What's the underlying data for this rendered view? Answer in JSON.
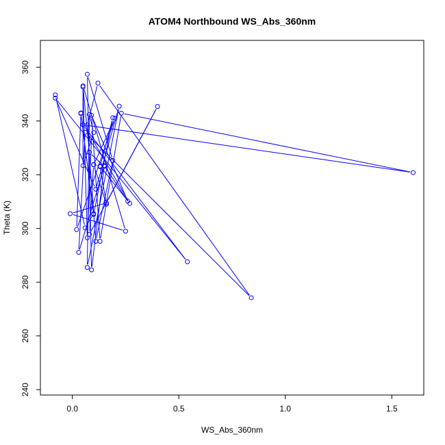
{
  "chart_data": {
    "type": "scatter",
    "title": "ATOM4 Northbound WS_Abs_360nm",
    "xlabel": "WS_Abs_360nm",
    "ylabel": "Theta (K)",
    "xlim": [
      -0.15,
      1.65
    ],
    "ylim": [
      238,
      370
    ],
    "x_ticks": [
      0.0,
      0.5,
      1.0,
      1.5
    ],
    "x_tick_labels": [
      "0.0",
      "0.5",
      "1.0",
      "1.5"
    ],
    "y_ticks": [
      240,
      260,
      280,
      300,
      320,
      340,
      360
    ],
    "y_tick_labels": [
      "240",
      "260",
      "280",
      "300",
      "320",
      "340",
      "360"
    ],
    "grid": false,
    "legend": "none",
    "series": [
      {
        "color": "#0000ff",
        "marker": "open-circle",
        "connected": true,
        "points": [
          {
            "x": -0.08,
            "y": 349.7
          },
          {
            "x": 0.06,
            "y": 300.2
          },
          {
            "x": 0.1,
            "y": 305.5
          },
          {
            "x": 0.04,
            "y": 342.8
          },
          {
            "x": 0.02,
            "y": 299.6
          },
          {
            "x": 0.2,
            "y": 341.0
          },
          {
            "x": 0.1,
            "y": 323.7
          },
          {
            "x": 0.16,
            "y": 309.0
          },
          {
            "x": 0.13,
            "y": 323.2
          },
          {
            "x": 0.27,
            "y": 309.3
          },
          {
            "x": 0.09,
            "y": 333.7
          },
          {
            "x": 0.07,
            "y": 296.5
          },
          {
            "x": 0.05,
            "y": 352.7
          },
          {
            "x": 0.08,
            "y": 328.3
          },
          {
            "x": 0.15,
            "y": 323.1
          },
          {
            "x": 0.03,
            "y": 291.1
          },
          {
            "x": 0.06,
            "y": 335.8
          },
          {
            "x": 0.84,
            "y": 274.2
          },
          {
            "x": 0.12,
            "y": 354.1
          },
          {
            "x": 0.07,
            "y": 338.5
          },
          {
            "x": 0.11,
            "y": 295.2
          },
          {
            "x": 0.19,
            "y": 325.3
          },
          {
            "x": 0.07,
            "y": 357.4
          },
          {
            "x": 0.09,
            "y": 284.6
          },
          {
            "x": 0.15,
            "y": 323.4
          },
          {
            "x": 0.26,
            "y": 310.2
          },
          {
            "x": 0.09,
            "y": 342.1
          },
          {
            "x": 0.13,
            "y": 295.2
          },
          {
            "x": 0.23,
            "y": 342.9
          },
          {
            "x": 1.6,
            "y": 320.8
          },
          {
            "x": 0.05,
            "y": 338.6
          },
          {
            "x": 0.54,
            "y": 287.6
          },
          {
            "x": -0.08,
            "y": 348.5
          },
          {
            "x": 0.11,
            "y": 314.6
          },
          {
            "x": 0.22,
            "y": 345.5
          },
          {
            "x": 0.07,
            "y": 285.5
          },
          {
            "x": 0.08,
            "y": 342.4
          },
          {
            "x": 0.1,
            "y": 335.7
          },
          {
            "x": 0.05,
            "y": 323.4
          },
          {
            "x": 0.05,
            "y": 353.1
          },
          {
            "x": 0.25,
            "y": 299.0
          },
          {
            "x": -0.01,
            "y": 305.5
          },
          {
            "x": 0.16,
            "y": 309.5
          },
          {
            "x": 0.4,
            "y": 345.4
          },
          {
            "x": 0.08,
            "y": 297.8
          },
          {
            "x": 0.1,
            "y": 323.8
          },
          {
            "x": 0.13,
            "y": 323.0
          },
          {
            "x": 0.19,
            "y": 341.2
          },
          {
            "x": 0.1,
            "y": 305.2
          },
          {
            "x": 0.04,
            "y": 343.0
          }
        ]
      }
    ]
  }
}
